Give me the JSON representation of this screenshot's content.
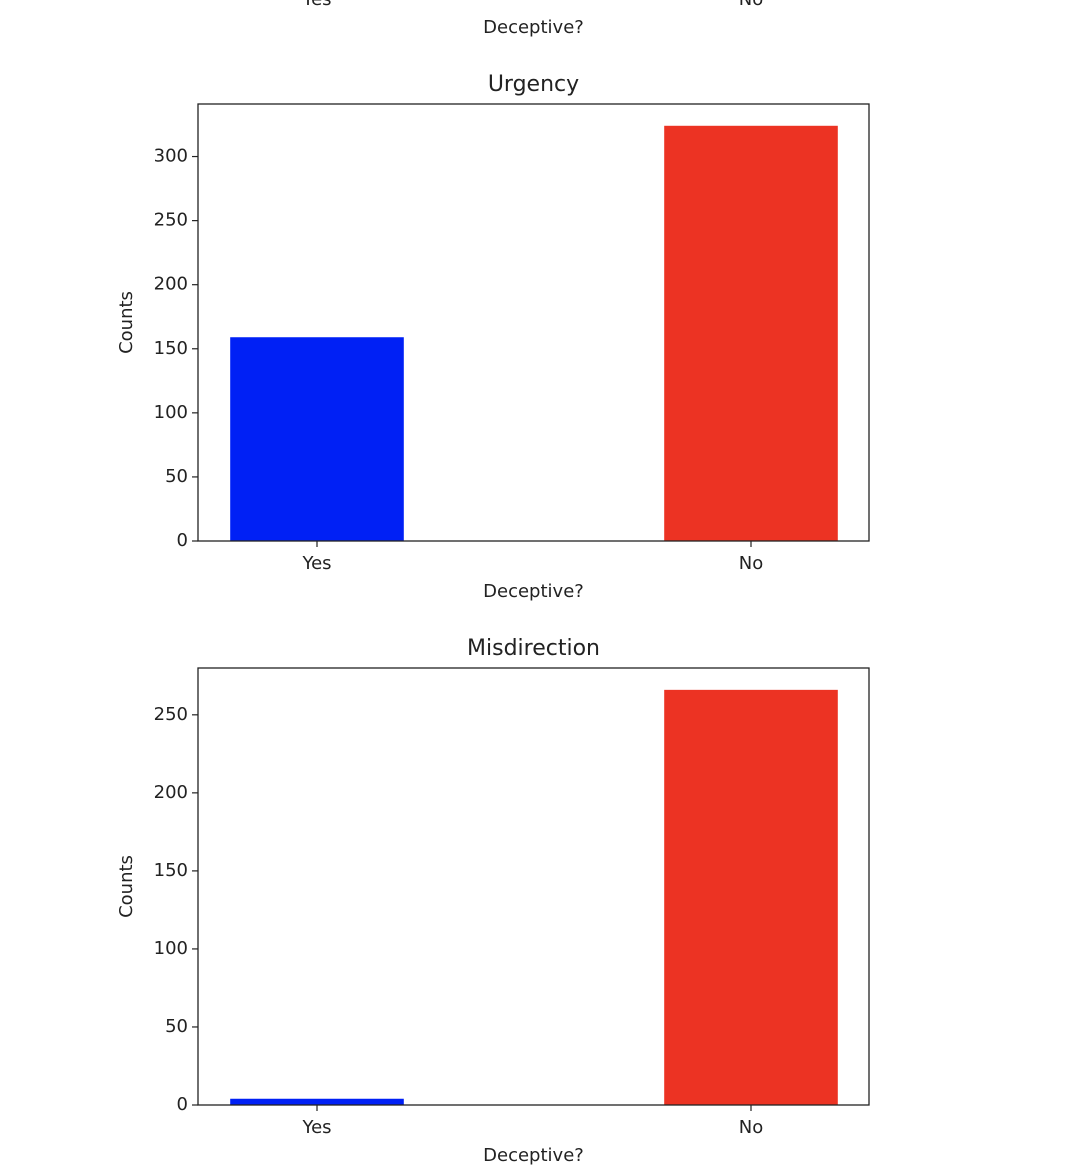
{
  "chart_data": [
    {
      "type": "bar",
      "categories": [
        "Yes",
        "No"
      ],
      "xlabel": "Deceptive?"
    },
    {
      "type": "bar",
      "title": "Urgency",
      "categories": [
        "Yes",
        "No"
      ],
      "values": [
        159,
        324
      ],
      "colors": [
        "#0020f5",
        "#ec3323"
      ],
      "xlabel": "Deceptive?",
      "ylabel": "Counts",
      "ylim": [
        0,
        341
      ],
      "yticks": [
        0,
        50,
        100,
        150,
        200,
        250,
        300
      ]
    },
    {
      "type": "bar",
      "title": "Misdirection",
      "categories": [
        "Yes",
        "No"
      ],
      "values": [
        4,
        266
      ],
      "colors": [
        "#0020f5",
        "#ec3323"
      ],
      "xlabel": "Deceptive?",
      "ylabel": "Counts",
      "ylim": [
        0,
        280
      ],
      "yticks": [
        0,
        50,
        100,
        150,
        200,
        250
      ]
    }
  ]
}
